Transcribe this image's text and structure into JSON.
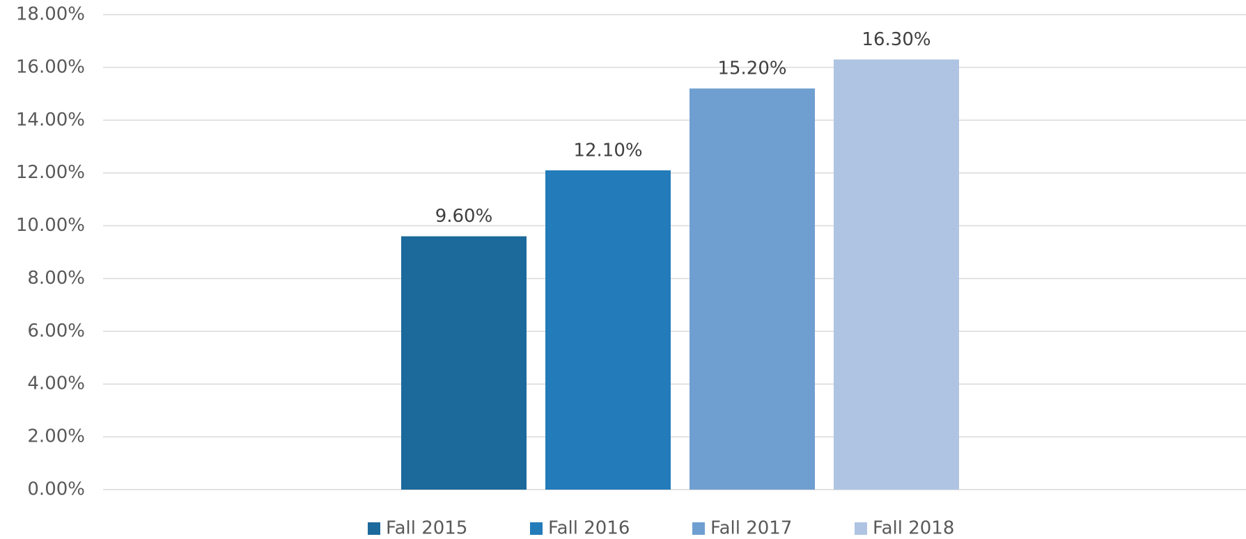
{
  "chart_data": {
    "type": "bar",
    "categories": [
      null
    ],
    "series": [
      {
        "name": "Fall 2015",
        "color": "#1c6a9c",
        "values": [
          9.6
        ],
        "value_labels": [
          "9.60%"
        ]
      },
      {
        "name": "Fall 2016",
        "color": "#237bba",
        "values": [
          12.1
        ],
        "value_labels": [
          "12.10%"
        ]
      },
      {
        "name": "Fall 2017",
        "color": "#6f9fd0",
        "values": [
          15.2
        ],
        "value_labels": [
          "15.20%"
        ]
      },
      {
        "name": "Fall 2018",
        "color": "#aec4e2",
        "values": [
          16.3
        ],
        "value_labels": [
          "16.30%"
        ]
      }
    ],
    "ylim": [
      0,
      18
    ],
    "yticks": [
      {
        "value": 0,
        "label": "0.00%"
      },
      {
        "value": 2,
        "label": "2.00%"
      },
      {
        "value": 4,
        "label": "4.00%"
      },
      {
        "value": 6,
        "label": "6.00%"
      },
      {
        "value": 8,
        "label": "8.00%"
      },
      {
        "value": 10,
        "label": "10.00%"
      },
      {
        "value": 12,
        "label": "12.00%"
      },
      {
        "value": 14,
        "label": "14.00%"
      },
      {
        "value": 16,
        "label": "16.00%"
      },
      {
        "value": 18,
        "label": "18.00%"
      }
    ],
    "grid": true,
    "legend": "bottom"
  }
}
